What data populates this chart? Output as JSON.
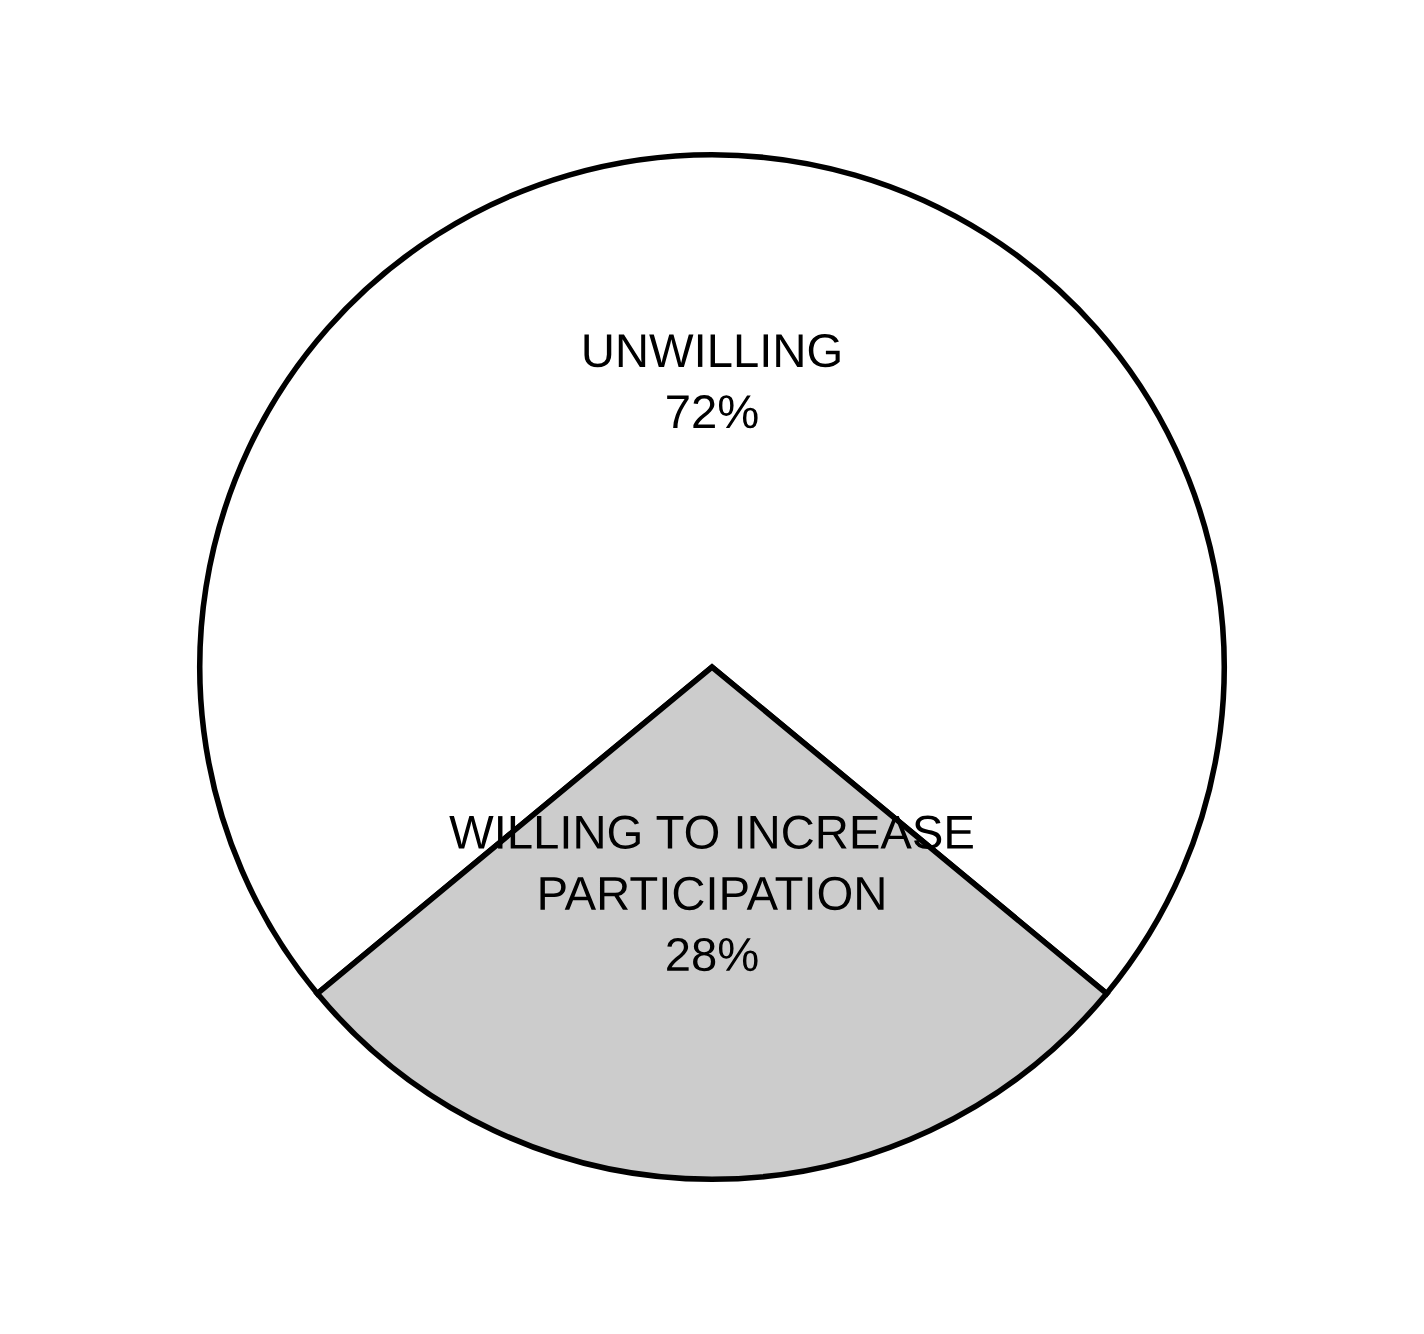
{
  "chart_data": {
    "type": "pie",
    "categories": [
      "UNWILLING",
      "WILLING TO INCREASE\nPARTICIPATION"
    ],
    "values": [
      72,
      28
    ],
    "value_labels": [
      "72%",
      "28%"
    ],
    "colors": [
      "#ffffff",
      "#cccccc"
    ]
  }
}
